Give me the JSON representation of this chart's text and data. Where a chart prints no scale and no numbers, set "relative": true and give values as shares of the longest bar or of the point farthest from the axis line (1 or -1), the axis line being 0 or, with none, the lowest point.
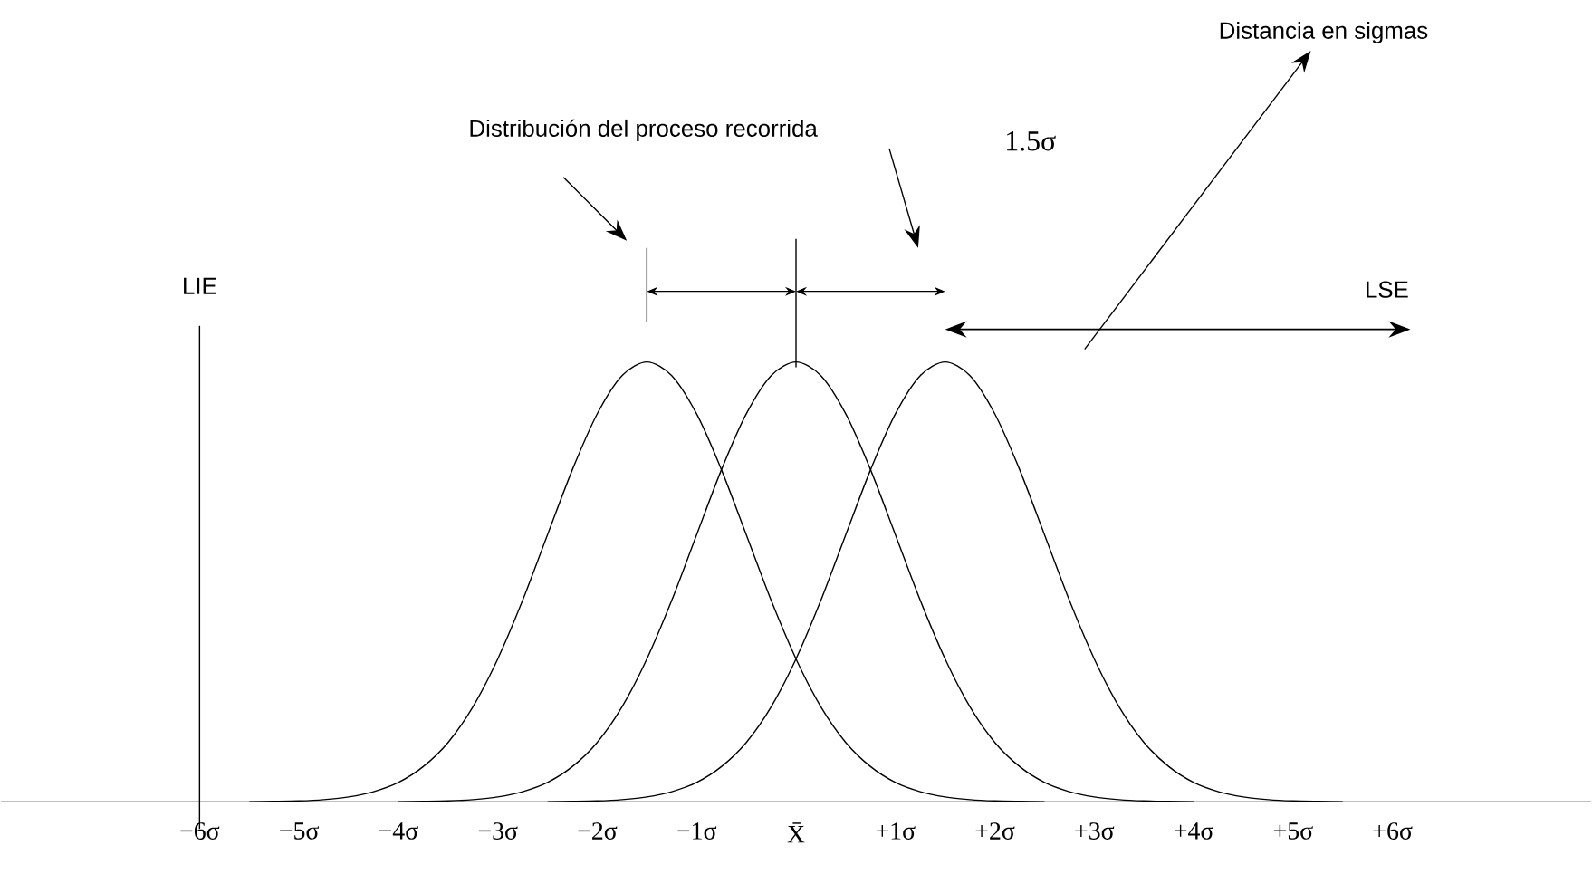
{
  "chart_data": {
    "type": "line",
    "relative": true,
    "xlim": [
      -8,
      8
    ],
    "xticks": [
      {
        "value": -6,
        "label": "−6σ"
      },
      {
        "value": -5,
        "label": "−5σ"
      },
      {
        "value": -4,
        "label": "−4σ"
      },
      {
        "value": -3,
        "label": "−3σ"
      },
      {
        "value": -2,
        "label": "−2σ"
      },
      {
        "value": -1,
        "label": "−1σ"
      },
      {
        "value": 0,
        "label": "X̄"
      },
      {
        "value": 1,
        "label": "+1σ"
      },
      {
        "value": 2,
        "label": "+2σ"
      },
      {
        "value": 3,
        "label": "+3σ"
      },
      {
        "value": 4,
        "label": "+4σ"
      },
      {
        "value": 5,
        "label": "+5σ"
      },
      {
        "value": 6,
        "label": "+6σ"
      }
    ],
    "series": [
      {
        "color": "#000000",
        "x": [
          -5.5,
          -5.25,
          -5,
          -4.75,
          -4.5,
          -4.25,
          -4,
          -3.75,
          -3.5,
          -3.25,
          -3,
          -2.75,
          -2.5,
          -2.25,
          -2,
          -1.75,
          -1.5,
          -1.25,
          -1,
          -0.75,
          -0.5,
          -0.25,
          0,
          0.25,
          0.5,
          0.75,
          1,
          1.25,
          1.5,
          1.75,
          2,
          2.25,
          2.5
        ],
        "values": [
          0.0003,
          0.0009,
          0.002,
          0.005,
          0.011,
          0.023,
          0.044,
          0.08,
          0.135,
          0.216,
          0.325,
          0.458,
          0.607,
          0.755,
          0.882,
          0.969,
          1,
          0.969,
          0.882,
          0.755,
          0.607,
          0.458,
          0.325,
          0.216,
          0.135,
          0.08,
          0.044,
          0.023,
          0.011,
          0.005,
          0.002,
          0.0009,
          0.0003
        ]
      },
      {
        "color": "#000000",
        "x": [
          -4,
          -3.75,
          -3.5,
          -3.25,
          -3,
          -2.75,
          -2.5,
          -2.25,
          -2,
          -1.75,
          -1.5,
          -1.25,
          -1,
          -0.75,
          -0.5,
          -0.25,
          0,
          0.25,
          0.5,
          0.75,
          1,
          1.25,
          1.5,
          1.75,
          2,
          2.25,
          2.5,
          2.75,
          3,
          3.25,
          3.5,
          3.75,
          4
        ],
        "values": [
          0.0003,
          0.0009,
          0.002,
          0.005,
          0.011,
          0.023,
          0.044,
          0.08,
          0.135,
          0.216,
          0.325,
          0.458,
          0.607,
          0.755,
          0.882,
          0.969,
          1,
          0.969,
          0.882,
          0.755,
          0.607,
          0.458,
          0.325,
          0.216,
          0.135,
          0.08,
          0.044,
          0.023,
          0.011,
          0.005,
          0.002,
          0.0009,
          0.0003
        ]
      },
      {
        "color": "#000000",
        "x": [
          -2.5,
          -2.25,
          -2,
          -1.75,
          -1.5,
          -1.25,
          -1,
          -0.75,
          -0.5,
          -0.25,
          0,
          0.25,
          0.5,
          0.75,
          1,
          1.25,
          1.5,
          1.75,
          2,
          2.25,
          2.5,
          2.75,
          3,
          3.25,
          3.5,
          3.75,
          4,
          4.25,
          4.5,
          4.75,
          5,
          5.25,
          5.5
        ],
        "values": [
          0.0003,
          0.0009,
          0.002,
          0.005,
          0.011,
          0.023,
          0.044,
          0.08,
          0.135,
          0.216,
          0.325,
          0.458,
          0.607,
          0.755,
          0.882,
          0.969,
          1,
          0.969,
          0.882,
          0.755,
          0.607,
          0.458,
          0.325,
          0.216,
          0.135,
          0.08,
          0.044,
          0.023,
          0.011,
          0.005,
          0.002,
          0.0009,
          0.0003
        ]
      }
    ],
    "ref_lines": [
      {
        "axis": "x",
        "value": -6,
        "label": "LIE"
      }
    ],
    "annotations": [
      "Distribución del proceso recorrida",
      "1.5σ",
      "Distancia en sigmas",
      "LSE"
    ]
  }
}
